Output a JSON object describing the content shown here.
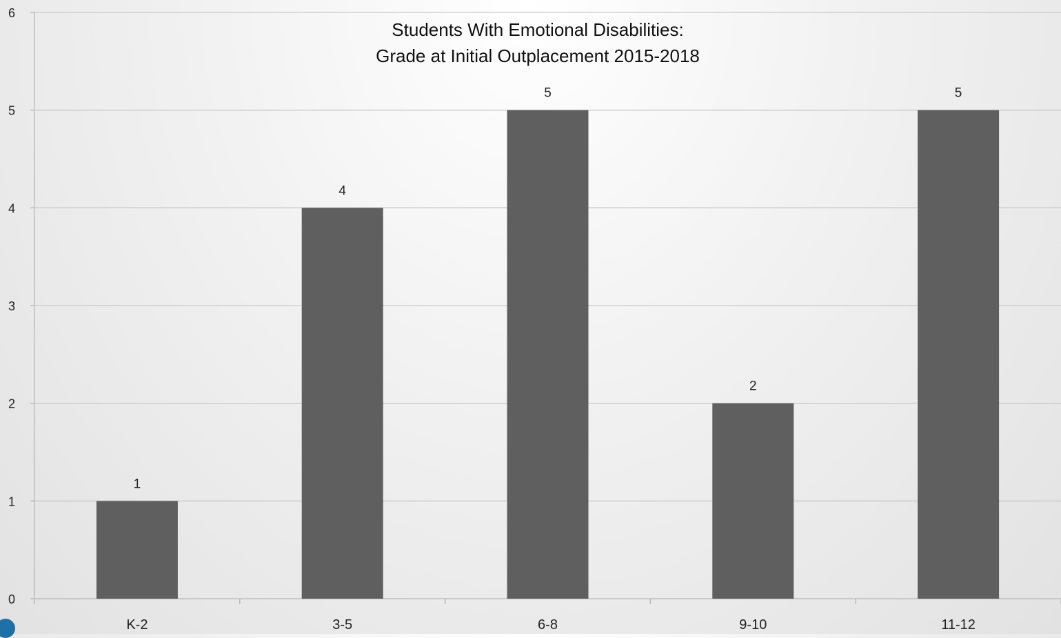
{
  "chart_data": {
    "type": "bar",
    "title_lines": [
      "Students With Emotional Disabilities:",
      "Grade at Initial Outplacement 2015-2018"
    ],
    "categories": [
      "K-2",
      "3-5",
      "6-8",
      "9-10",
      "11-12"
    ],
    "values": [
      1,
      4,
      5,
      2,
      5
    ],
    "ylim": [
      0,
      6
    ],
    "y_ticks": [
      "0",
      "1",
      "2",
      "3",
      "4",
      "5",
      "6"
    ],
    "grid": true,
    "bar_color": "#5f5f5f",
    "data_labels": true
  }
}
